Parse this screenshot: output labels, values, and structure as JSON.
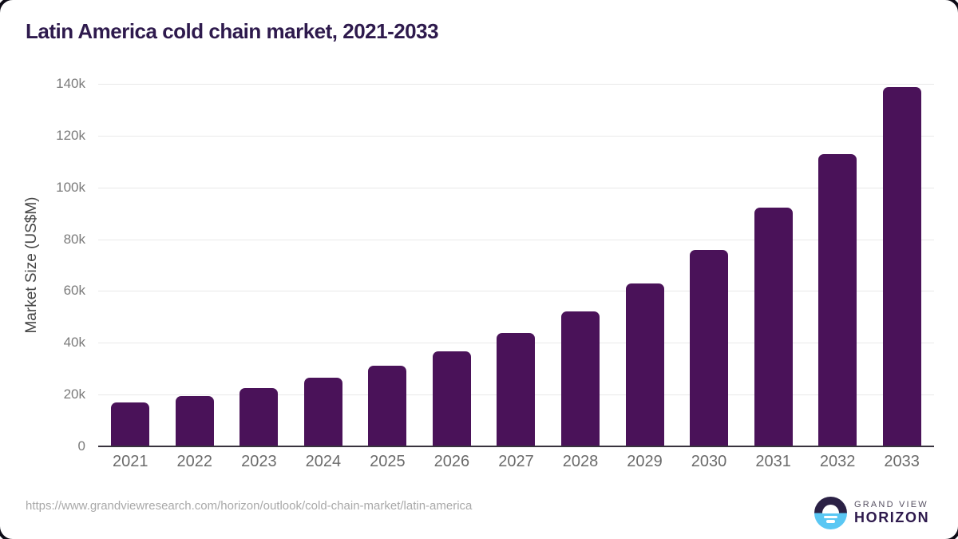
{
  "title": "Latin America cold chain market, 2021-2033",
  "source_url": "https://www.grandviewresearch.com/horizon/outlook/cold-chain-market/latin-america",
  "brand": {
    "line1": "GRAND VIEW",
    "line2": "HORIZON"
  },
  "colors": {
    "bar": "#4a1259",
    "title": "#2e1a4d",
    "axis": "#38333e",
    "grid": "#e9e9e9",
    "tick_label": "#7b7b7b",
    "border_dark": "#0d0b16",
    "brand_dark": "#2b2145",
    "brand_blue": "#5ac7f3"
  },
  "chart_data": {
    "type": "bar",
    "title": "Latin America cold chain market, 2021-2033",
    "xlabel": "",
    "ylabel": "Market Size (US$M)",
    "unit": "US$M",
    "categories": [
      "2021",
      "2022",
      "2023",
      "2024",
      "2025",
      "2026",
      "2027",
      "2028",
      "2029",
      "2030",
      "2031",
      "2032",
      "2033"
    ],
    "values": [
      16900,
      19500,
      22600,
      26500,
      31100,
      36700,
      43800,
      52200,
      62800,
      76000,
      92300,
      113000,
      138900
    ],
    "ylim": [
      0,
      140000
    ],
    "yticks": [
      {
        "value": 0,
        "label": "0"
      },
      {
        "value": 20000,
        "label": "20k"
      },
      {
        "value": 40000,
        "label": "40k"
      },
      {
        "value": 60000,
        "label": "60k"
      },
      {
        "value": 80000,
        "label": "80k"
      },
      {
        "value": 100000,
        "label": "100k"
      },
      {
        "value": 120000,
        "label": "120k"
      },
      {
        "value": 140000,
        "label": "140k"
      }
    ],
    "grid": true,
    "legend": false
  }
}
